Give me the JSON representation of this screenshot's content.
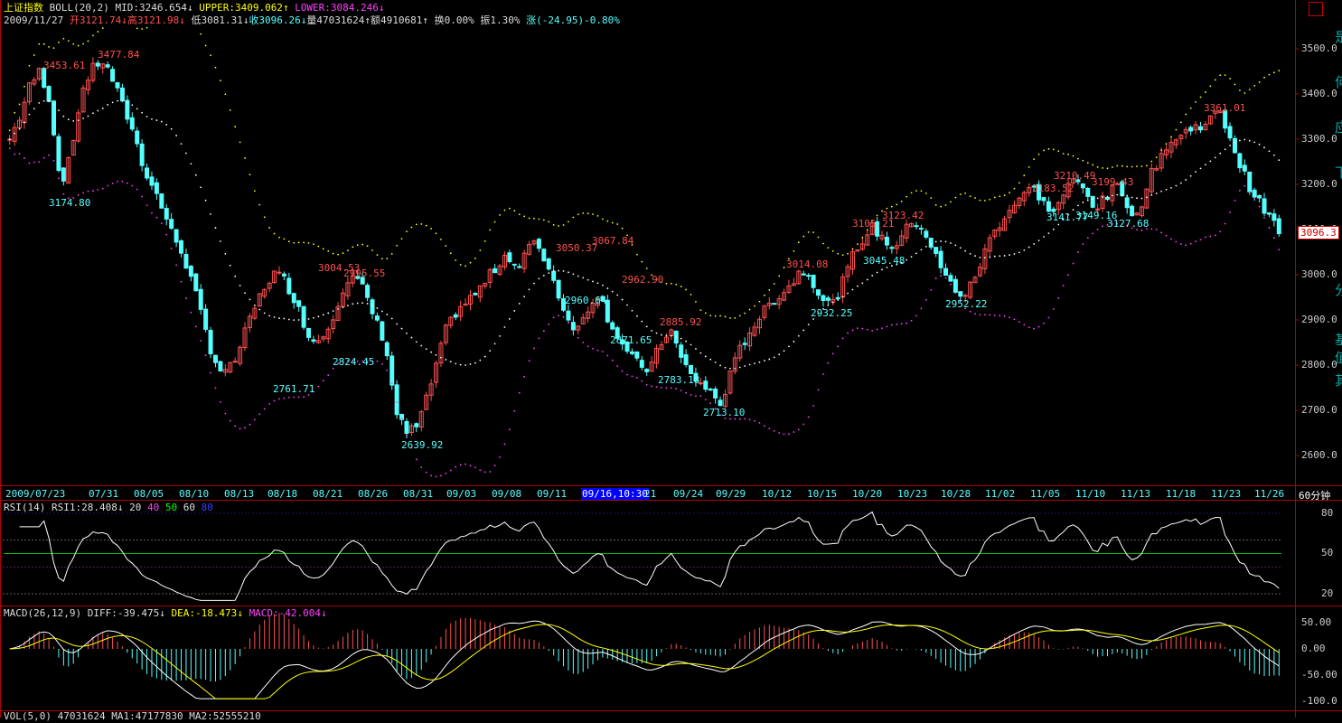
{
  "header": {
    "index_name": "上证指数",
    "boll_name": "BOLL(20,2)",
    "mid": "MID:3246.654",
    "upper": "UPPER:3409.062",
    "lower": "LOWER:3084.246",
    "date": "2009/11/27",
    "open": "开3121.74",
    "high": "高3121.98",
    "low": "低3081.31",
    "close": "收3096.26",
    "volume": "量47031624",
    "amount": "额4910681",
    "turnover": "换0.00%",
    "amplitude": "振1.30%",
    "change": "涨(-24.95)-0.80%"
  },
  "price_axis": {
    "ticks": [
      "3500.0",
      "3400.0",
      "3300.0",
      "3200.0",
      "3100.0",
      "3000.0",
      "2900.0",
      "2800.0",
      "2700.0",
      "2600.0"
    ],
    "current": "3096.3"
  },
  "price_labels": {
    "highs": [
      "3453.61",
      "3477.84",
      "3004.53",
      "2995.55",
      "3050.37",
      "3067.84",
      "2962.90",
      "2885.92",
      "3014.08",
      "3105.21",
      "3123.42",
      "3183.52",
      "3210.49",
      "3199.43",
      "3361.01"
    ],
    "lows": [
      "3174.80",
      "2761.71",
      "2824.45",
      "2639.92",
      "2960.64",
      "2871.65",
      "2783.18",
      "2713.10",
      "2932.25",
      "3045.48",
      "2952.22",
      "3141.77",
      "3149.16",
      "3127.68"
    ]
  },
  "x_axis": {
    "labels": [
      "2009/07/23",
      "07/31",
      "08/05",
      "08/10",
      "08/13",
      "08/18",
      "08/21",
      "08/26",
      "08/31",
      "09/03",
      "09/08",
      "09/11",
      "09/16,10:30",
      "21",
      "09/24",
      "09/29",
      "10/12",
      "10/15",
      "10/20",
      "10/23",
      "10/28",
      "11/02",
      "11/05",
      "11/10",
      "11/13",
      "11/18",
      "11/23",
      "11/26"
    ],
    "period": "60分钟"
  },
  "rsi": {
    "name": "RSI(14)",
    "value": "RSI1:28.408",
    "levels": [
      "20",
      "40",
      "50",
      "60",
      "80"
    ],
    "ticks": [
      "80",
      "50",
      "20"
    ]
  },
  "macd": {
    "name": "MACD(26,12,9)",
    "diff": "DIFF:-39.475",
    "dea": "DEA:-18.473",
    "macd": "MACD:-42.004",
    "ticks": [
      "50.00",
      "0.00",
      "-50.00",
      "-100.0"
    ]
  },
  "volume_row": {
    "text": "VOL(5,0) 47031624 MA1:47177830 MA2:52555210"
  },
  "side_panel": {
    "chars": [
      "是",
      "何",
      "应",
      "下",
      "基",
      "值",
      "其",
      "分"
    ]
  },
  "colors": {
    "up": "#ff5050",
    "down": "#54ffff",
    "mid": "#ffffff",
    "upper": "#ffff00",
    "lower": "#ff40ff",
    "grid": "#b00000"
  },
  "chart_data": {
    "type": "candlestick",
    "title": "上证指数",
    "x_range": [
      "2009/07/23",
      "2009/11/27"
    ],
    "ylim": [
      2560,
      3560
    ],
    "close_series_approx": [
      3300,
      3350,
      3420,
      3453,
      3380,
      3200,
      3260,
      3400,
      3450,
      3477,
      3440,
      3380,
      3330,
      3250,
      3200,
      3150,
      3090,
      3050,
      2980,
      2900,
      2820,
      2780,
      2800,
      2860,
      2920,
      2970,
      3004,
      2990,
      2950,
      2890,
      2850,
      2870,
      2920,
      2980,
      2995,
      2960,
      2900,
      2850,
      2700,
      2650,
      2660,
      2720,
      2800,
      2880,
      2920,
      2940,
      2960,
      2990,
      3020,
      3050,
      3010,
      3060,
      3067,
      3020,
      2960,
      2900,
      2880,
      2930,
      2962,
      2900,
      2860,
      2820,
      2800,
      2790,
      2840,
      2885,
      2820,
      2780,
      2760,
      2740,
      2713,
      2780,
      2840,
      2880,
      2910,
      2940,
      2960,
      2980,
      3014,
      2990,
      2950,
      2932,
      2980,
      3040,
      3080,
      3105,
      3080,
      3060,
      3090,
      3123,
      3100,
      3050,
      3000,
      2970,
      2952,
      2990,
      3050,
      3100,
      3130,
      3160,
      3183,
      3190,
      3150,
      3141,
      3190,
      3210,
      3180,
      3149,
      3170,
      3199,
      3160,
      3127,
      3200,
      3250,
      3290,
      3300,
      3320,
      3330,
      3340,
      3361,
      3320,
      3250,
      3200,
      3160,
      3130,
      3096
    ]
  }
}
